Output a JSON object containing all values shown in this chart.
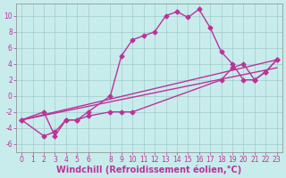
{
  "title": "",
  "xlabel": "Windchill (Refroidissement éolien,°C)",
  "ylabel": "",
  "background_color": "#c8ecec",
  "grid_color": "#a0cccc",
  "line_color": "#bb3399",
  "xlim": [
    -0.5,
    23.5
  ],
  "ylim": [
    -7,
    11.5
  ],
  "xticks": [
    0,
    1,
    2,
    3,
    4,
    5,
    6,
    8,
    9,
    10,
    11,
    12,
    13,
    14,
    15,
    16,
    17,
    18,
    19,
    20,
    21,
    22,
    23
  ],
  "yticks": [
    -6,
    -4,
    -2,
    0,
    2,
    4,
    6,
    8,
    10
  ],
  "series1_x": [
    0,
    2,
    3,
    4,
    5,
    6,
    8,
    9,
    10,
    11,
    12,
    13,
    14,
    15,
    16,
    17,
    18,
    19,
    20,
    21,
    22,
    23
  ],
  "series1_y": [
    -3,
    -2,
    -5,
    -3,
    -3,
    -2,
    0,
    5,
    7,
    7.5,
    8,
    10,
    10.5,
    9.8,
    10.8,
    8.5,
    5.5,
    4.0,
    2.0,
    2.0,
    3.0,
    4.5
  ],
  "series2_x": [
    0,
    2,
    3,
    4,
    5,
    6,
    8,
    9,
    10,
    18,
    19,
    20,
    21,
    22,
    23
  ],
  "series2_y": [
    -3,
    -5,
    -4.5,
    -3,
    -3,
    -2.5,
    -2,
    -2,
    -2,
    2.0,
    3.5,
    4.0,
    2.0,
    3.0,
    4.5
  ],
  "line3_x": [
    0,
    23
  ],
  "line3_y": [
    -3,
    4.5
  ],
  "line4_x": [
    0,
    23
  ],
  "line4_y": [
    -3,
    3.5
  ],
  "tick_fontsize": 5.5,
  "label_fontsize": 7.0,
  "spine_color": "#888888"
}
